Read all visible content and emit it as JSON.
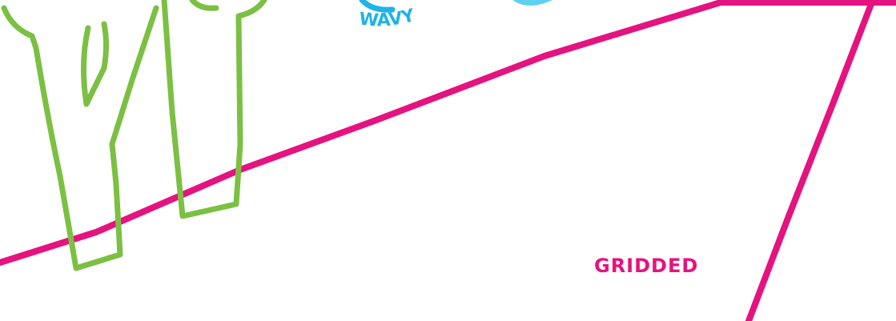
{
  "labels": {
    "wavy": "WAVY",
    "gridded": "GRIDDED"
  }
}
